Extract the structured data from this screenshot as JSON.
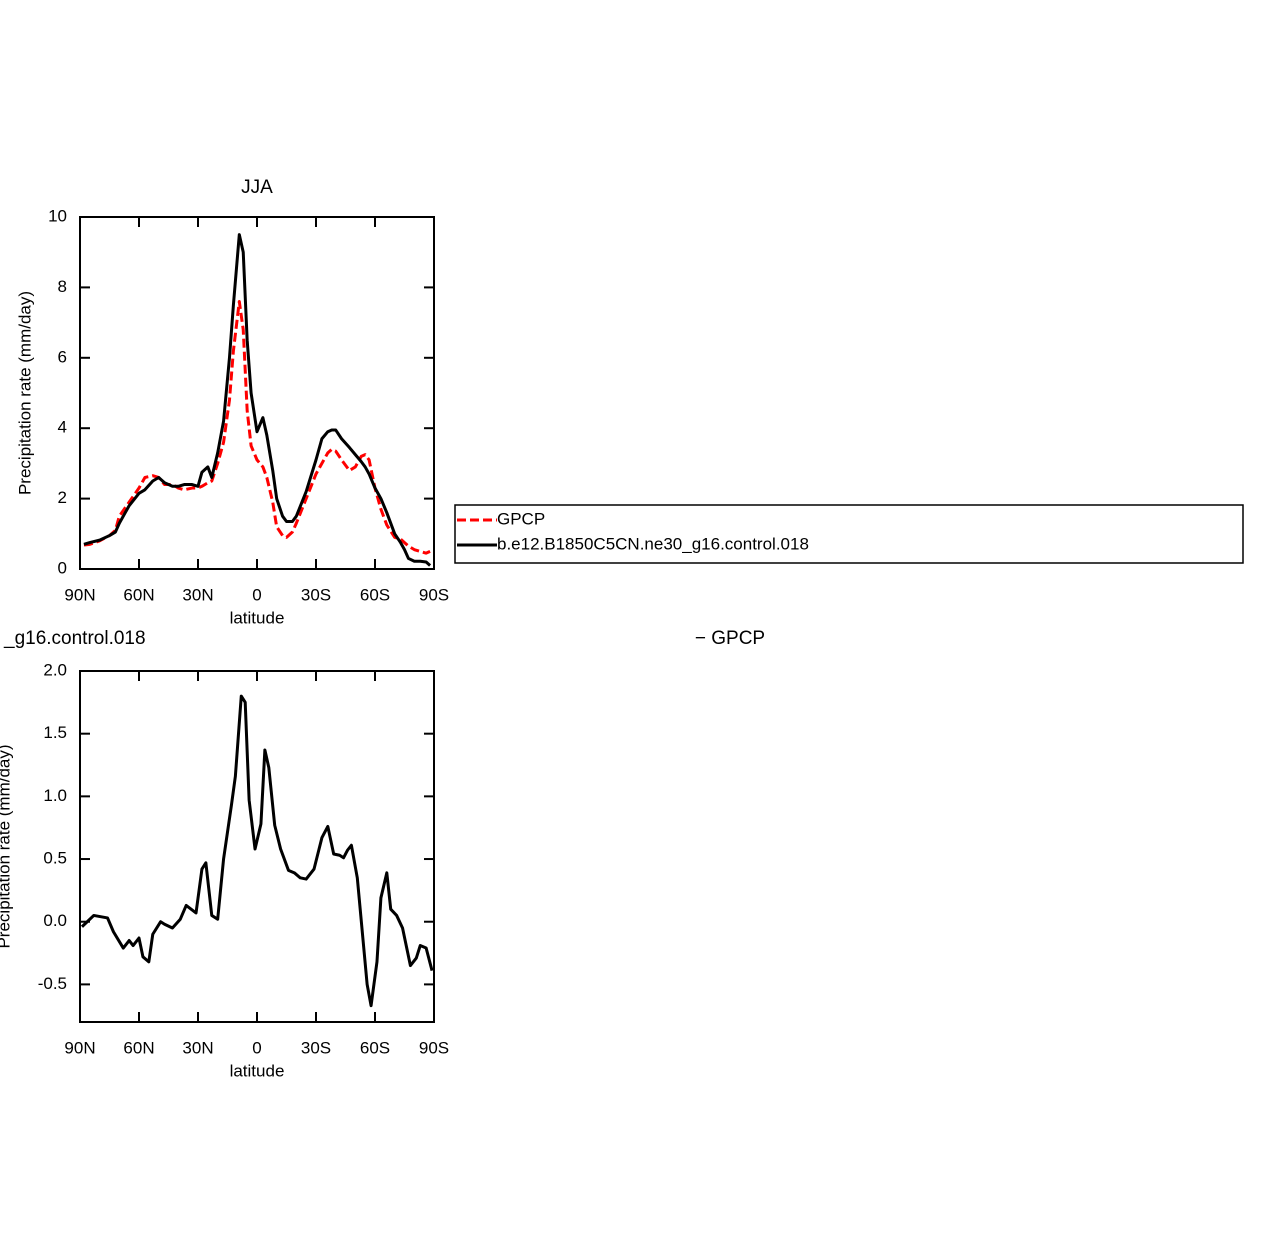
{
  "chart_data": [
    {
      "type": "line",
      "title": "JJA",
      "x_label": "latitude",
      "y_label": "Precipitation rate (mm/day)",
      "xlim": [
        90,
        -90
      ],
      "ylim": [
        0,
        10
      ],
      "xticks": [
        {
          "value": 90,
          "label": "90N"
        },
        {
          "value": 60,
          "label": "60N"
        },
        {
          "value": 30,
          "label": "30N"
        },
        0,
        {
          "value": -30,
          "label": "30S"
        },
        {
          "value": -60,
          "label": "60S"
        },
        {
          "value": -90,
          "label": "90S"
        }
      ],
      "yticks": [
        0,
        2,
        4,
        6,
        8,
        10
      ],
      "x": [
        88,
        85,
        80,
        75,
        72,
        70,
        65,
        60,
        57,
        53,
        50,
        47,
        43,
        40,
        37,
        33,
        30,
        28,
        25,
        23,
        20,
        17,
        14,
        12,
        9,
        7,
        5,
        3,
        0,
        -3,
        -5,
        -8,
        -10,
        -13,
        -15,
        -18,
        -20,
        -25,
        -30,
        -33,
        -36,
        -38,
        -40,
        -43,
        -47,
        -50,
        -53,
        -55,
        -57,
        -60,
        -63,
        -66,
        -70,
        -73,
        -75,
        -77,
        -80,
        -83,
        -86,
        -88
      ],
      "series": [
        {
          "name": "GPCP",
          "color": "#ff0000",
          "dashed": true,
          "values": [
            0.68,
            0.7,
            0.8,
            0.95,
            1.1,
            1.5,
            1.9,
            2.3,
            2.6,
            2.65,
            2.6,
            2.4,
            2.4,
            2.3,
            2.25,
            2.3,
            2.3,
            2.35,
            2.45,
            2.5,
            3.0,
            3.6,
            4.8,
            6.2,
            7.6,
            6.8,
            4.5,
            3.5,
            3.1,
            2.9,
            2.6,
            1.9,
            1.2,
            0.95,
            0.9,
            1.05,
            1.3,
            2.0,
            2.7,
            3.0,
            3.3,
            3.4,
            3.35,
            3.1,
            2.8,
            2.9,
            3.2,
            3.25,
            3.1,
            2.3,
            1.7,
            1.25,
            0.9,
            0.85,
            0.75,
            0.65,
            0.55,
            0.5,
            0.45,
            0.5
          ]
        },
        {
          "name": "b.e12.B1850C5CN.ne30_g16.control.018",
          "color": "#000000",
          "dashed": false,
          "values": [
            0.7,
            0.75,
            0.82,
            0.95,
            1.05,
            1.3,
            1.8,
            2.15,
            2.25,
            2.5,
            2.6,
            2.45,
            2.35,
            2.35,
            2.4,
            2.4,
            2.35,
            2.75,
            2.9,
            2.6,
            3.3,
            4.2,
            6.0,
            7.5,
            9.5,
            9.0,
            6.5,
            5.0,
            3.9,
            4.3,
            3.8,
            2.8,
            2.0,
            1.5,
            1.35,
            1.35,
            1.5,
            2.2,
            3.1,
            3.7,
            3.9,
            3.95,
            3.95,
            3.7,
            3.45,
            3.25,
            3.05,
            2.9,
            2.7,
            2.3,
            2.0,
            1.6,
            1.0,
            0.75,
            0.55,
            0.3,
            0.22,
            0.22,
            0.2,
            0.1
          ]
        }
      ]
    },
    {
      "type": "line",
      "title_left": "_g16.control.018",
      "title_right": "− GPCP",
      "x_label": "latitude",
      "y_label": "Precipitation rate (mm/day)",
      "xlim": [
        90,
        -90
      ],
      "ylim": [
        -0.8,
        2.0
      ],
      "xticks": [
        {
          "value": 90,
          "label": "90N"
        },
        {
          "value": 60,
          "label": "60N"
        },
        {
          "value": 30,
          "label": "30N"
        },
        0,
        {
          "value": -30,
          "label": "30S"
        },
        {
          "value": -60,
          "label": "60S"
        },
        {
          "value": -90,
          "label": "90S"
        }
      ],
      "yticks": [
        -0.5,
        {
          "value": 0,
          "label": "0.0"
        },
        0.5,
        {
          "value": 1,
          "label": "1.0"
        },
        1.5,
        {
          "value": 2,
          "label": "2.0"
        }
      ],
      "x": [
        89,
        83,
        76,
        73,
        68,
        65,
        63,
        60,
        58,
        55,
        53,
        49,
        47,
        43,
        39,
        36,
        31,
        28,
        26,
        23,
        20,
        17,
        13,
        11,
        8,
        6,
        4,
        1,
        -2,
        -4,
        -6,
        -9,
        -12,
        -16,
        -19,
        -22,
        -25,
        -29,
        -33,
        -36,
        -39,
        -42,
        -44,
        -46,
        -48,
        -51,
        -56,
        -58,
        -61,
        -63,
        -66,
        -68,
        -71,
        -74,
        -78,
        -81,
        -83,
        -86,
        -89
      ],
      "series": [
        {
          "color": "#000000",
          "dashed": false,
          "values": [
            -0.04,
            0.05,
            0.03,
            -0.08,
            -0.21,
            -0.15,
            -0.19,
            -0.13,
            -0.28,
            -0.32,
            -0.1,
            0.0,
            -0.02,
            -0.05,
            0.02,
            0.13,
            0.07,
            0.42,
            0.47,
            0.05,
            0.02,
            0.5,
            0.93,
            1.16,
            1.8,
            1.75,
            0.97,
            0.58,
            0.78,
            1.37,
            1.23,
            0.77,
            0.58,
            0.41,
            0.39,
            0.35,
            0.34,
            0.42,
            0.67,
            0.76,
            0.54,
            0.53,
            0.51,
            0.57,
            0.61,
            0.35,
            -0.5,
            -0.67,
            -0.32,
            0.19,
            0.39,
            0.1,
            0.05,
            -0.05,
            -0.35,
            -0.29,
            -0.19,
            -0.21,
            -0.39
          ]
        }
      ]
    }
  ]
}
